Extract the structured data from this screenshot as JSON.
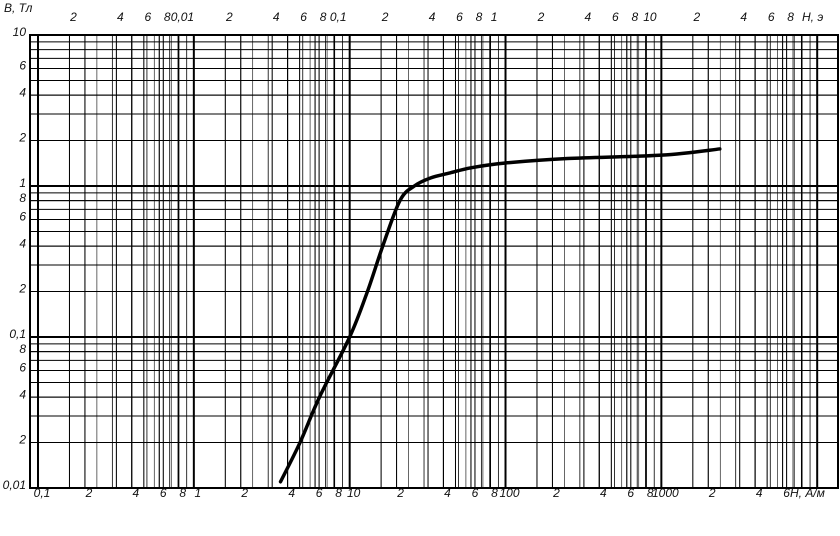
{
  "chart_data": {
    "type": "line",
    "y_label": "В, Тл",
    "x_label": "H, А/м",
    "x2_label": "Н, э",
    "log_x": true,
    "log_y": true,
    "grid": true,
    "minor_grid": true,
    "xlim": [
      0.1,
      13600
    ],
    "x2lim": [
      0.0012566,
      170.9
    ],
    "ylim": [
      0.01,
      10
    ],
    "xticks": [
      {
        "value": 0.1,
        "label": "0,1"
      },
      {
        "value": 0.2,
        "label": "2"
      },
      {
        "value": 0.4,
        "label": "4"
      },
      {
        "value": 0.6,
        "label": "6"
      },
      {
        "value": 0.8,
        "label": "8"
      },
      1,
      2,
      4,
      6,
      8,
      10,
      {
        "value": 20,
        "label": "2"
      },
      {
        "value": 40,
        "label": "4"
      },
      {
        "value": 60,
        "label": "6"
      },
      {
        "value": 80,
        "label": "8"
      },
      100,
      {
        "value": 200,
        "label": "2"
      },
      {
        "value": 400,
        "label": "4"
      },
      {
        "value": 600,
        "label": "6"
      },
      {
        "value": 800,
        "label": "8"
      },
      1000,
      {
        "value": 2000,
        "label": "2"
      },
      {
        "value": 4000,
        "label": "4"
      },
      {
        "value": 6000,
        "label": "6"
      }
    ],
    "x2ticks": [
      {
        "value": 0.002,
        "label": "2"
      },
      {
        "value": 0.004,
        "label": "4"
      },
      {
        "value": 0.006,
        "label": "6"
      },
      {
        "value": 0.008,
        "label": "8"
      },
      {
        "value": 0.01,
        "label": "0,01"
      },
      {
        "value": 0.02,
        "label": "2"
      },
      {
        "value": 0.04,
        "label": "4"
      },
      {
        "value": 0.06,
        "label": "6"
      },
      {
        "value": 0.08,
        "label": "8"
      },
      {
        "value": 0.1,
        "label": "0,1"
      },
      {
        "value": 0.2,
        "label": "2"
      },
      {
        "value": 0.4,
        "label": "4"
      },
      {
        "value": 0.6,
        "label": "6"
      },
      {
        "value": 0.8,
        "label": "8"
      },
      1,
      2,
      4,
      6,
      8,
      10,
      {
        "value": 20,
        "label": "2"
      },
      {
        "value": 40,
        "label": "4"
      },
      {
        "value": 60,
        "label": "6"
      },
      {
        "value": 80,
        "label": "8"
      }
    ],
    "yticks": [
      10,
      6,
      4,
      2,
      1,
      {
        "value": 0.8,
        "label": "8"
      },
      {
        "value": 0.6,
        "label": "6"
      },
      {
        "value": 0.4,
        "label": "4"
      },
      {
        "value": 0.2,
        "label": "2"
      },
      {
        "value": 0.1,
        "label": "0,1"
      },
      {
        "value": 0.08,
        "label": "8"
      },
      {
        "value": 0.06,
        "label": "6"
      },
      {
        "value": 0.04,
        "label": "4"
      },
      {
        "value": 0.02,
        "label": "2"
      },
      {
        "value": 0.01,
        "label": "0,01"
      }
    ],
    "series": [
      {
        "color": "#000000",
        "x": [
          3.6,
          4.8,
          6.4,
          10,
          13,
          16.3,
          21,
          26,
          33,
          44,
          60,
          100,
          250,
          1000,
          2370
        ],
        "values": [
          0.011,
          0.02,
          0.04,
          0.1,
          0.2,
          0.4,
          0.8,
          1.0,
          1.13,
          1.22,
          1.32,
          1.42,
          1.52,
          1.6,
          1.76
        ]
      }
    ]
  }
}
